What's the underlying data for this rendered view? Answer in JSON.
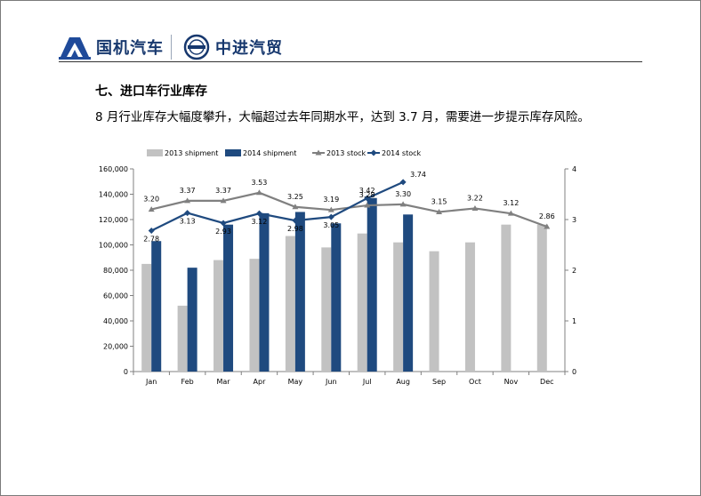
{
  "header": {
    "logo_left_text": "国机汽车",
    "logo_right_text": "中进汽贸"
  },
  "section_title": "七、进口车行业库存",
  "description": "8 月行业库存大幅度攀升，大幅超过去年同期水平，达到 3.7 月，需要进一步提示库存风险。",
  "colors": {
    "brand": "#17386e",
    "ship2013": "#c2c2c2",
    "ship2014": "#1f4a7f",
    "stock2013": "#808080",
    "stock2014": "#1f4a7f"
  },
  "chart_data": {
    "type": "bar",
    "categories": [
      "Jan",
      "Feb",
      "Mar",
      "Apr",
      "May",
      "Jun",
      "Jul",
      "Aug",
      "Sep",
      "Oct",
      "Nov",
      "Dec"
    ],
    "series": [
      {
        "name": "2013 shipment",
        "type": "bar",
        "axis": "left",
        "values": [
          85000,
          52000,
          88000,
          89000,
          107000,
          98000,
          109000,
          102000,
          95000,
          102000,
          116000,
          116000
        ]
      },
      {
        "name": "2014 shipment",
        "type": "bar",
        "axis": "left",
        "values": [
          103000,
          82000,
          116000,
          125000,
          126000,
          117000,
          137000,
          124000,
          null,
          null,
          null,
          null
        ]
      },
      {
        "name": "2013 stock",
        "type": "line",
        "axis": "right",
        "values": [
          3.2,
          3.37,
          3.37,
          3.53,
          3.25,
          3.19,
          3.28,
          3.3,
          3.15,
          3.22,
          3.12,
          2.86
        ]
      },
      {
        "name": "2014 stock",
        "type": "line",
        "axis": "right",
        "values": [
          2.78,
          3.13,
          2.93,
          3.12,
          2.98,
          3.05,
          3.42,
          3.74,
          null,
          null,
          null,
          null
        ]
      }
    ],
    "y_left": {
      "min": 0,
      "max": 160000,
      "ticks": [
        "0",
        "20,000",
        "40,000",
        "60,000",
        "80,000",
        "100,000",
        "120,000",
        "140,000",
        "160,000"
      ]
    },
    "y_right": {
      "min": 0,
      "max": 4,
      "ticks": [
        "0",
        "1",
        "2",
        "3",
        "4"
      ]
    },
    "stock2013_labels": [
      "3.20",
      "3.37",
      "3.37",
      "3.53",
      "3.25",
      "3.19",
      "3.28",
      "3.30",
      "3.15",
      "3.22",
      "3.12",
      "2.86"
    ],
    "stock2014_labels": [
      "2.78",
      "3.13",
      "2.93",
      "3.12",
      "2.98",
      "3.05",
      "3.42",
      "3.74",
      "",
      "",
      "",
      ""
    ],
    "legend_position": "top",
    "grid": false
  }
}
